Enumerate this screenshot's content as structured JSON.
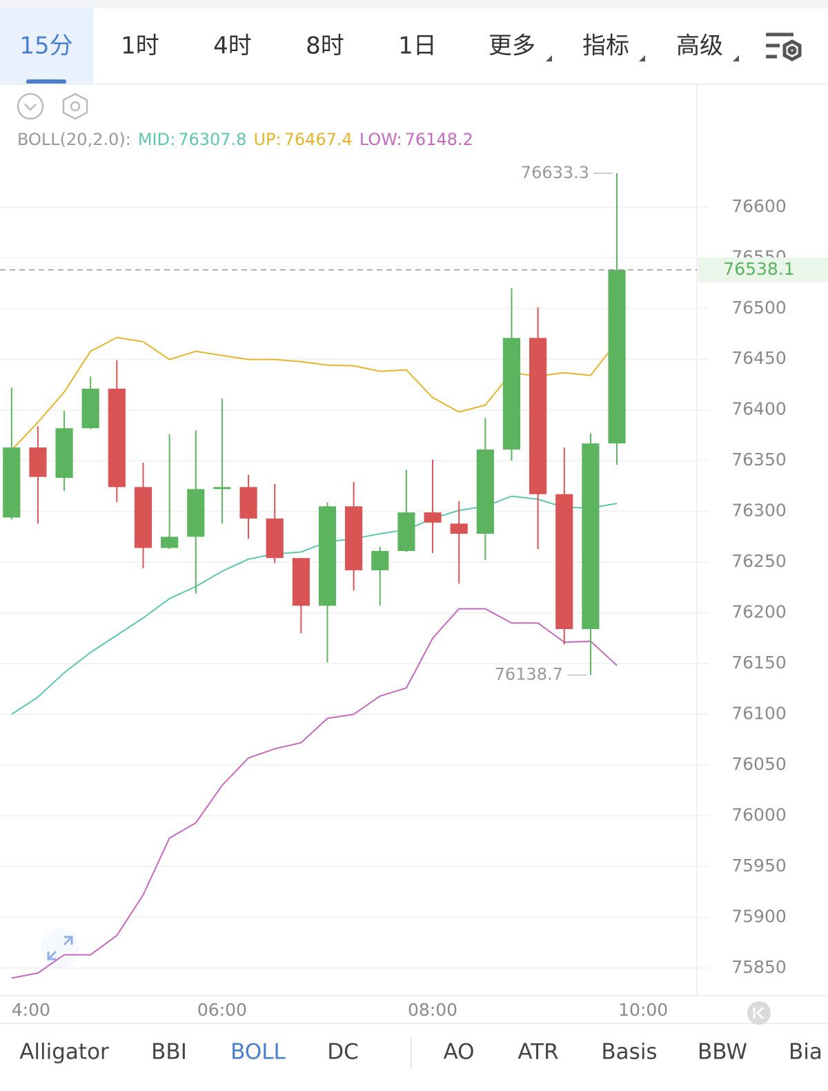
{
  "tabs": [
    "15分",
    "1时",
    "4时",
    "8时",
    "1日",
    "更多",
    "指标",
    "高级"
  ],
  "indicator_tabs": [
    "Alligator",
    "BBI",
    "BOLL",
    "DC",
    "AO",
    "ATR",
    "Basis",
    "BBW",
    "Bia"
  ],
  "chart_data": {
    "type": "candlestick",
    "indicator": "BOLL(20,2.0):",
    "up_color": "#5cb45f",
    "down_color": "#d95454",
    "x": [
      4,
      4.25,
      4.5,
      4.75,
      5,
      5.25,
      5.5,
      5.75,
      6,
      6.25,
      6.5,
      6.75,
      7,
      7.25,
      7.5,
      7.75,
      8,
      8.25,
      8.5,
      8.75,
      9,
      9.25,
      9.5,
      9.75
    ],
    "open": [
      76294,
      76363,
      76333,
      76382,
      76421,
      76324,
      76264,
      76275,
      76322,
      76324,
      76293,
      76254,
      76207,
      76305,
      76242,
      76261,
      76299,
      76288,
      76278,
      76361,
      76471,
      76317,
      76184,
      76367
    ],
    "high": [
      76422,
      76384,
      76399,
      76433,
      76449,
      76348,
      76376,
      76380,
      76411,
      76336,
      76327,
      76254,
      76309,
      76329,
      76265,
      76341,
      76351,
      76310,
      76392,
      76520,
      76501,
      76363,
      76377,
      76633.3
    ],
    "low": [
      76292,
      76288,
      76320,
      76381,
      76309,
      76244,
      76263,
      76219,
      76288,
      76273,
      76249,
      76180,
      76151,
      76222,
      76207,
      76260,
      76259,
      76229,
      76252,
      76350,
      76263,
      76169,
      76138.7,
      76346
    ],
    "close": [
      76363,
      76334,
      76382,
      76421,
      76324,
      76264,
      76275,
      76322,
      76324,
      76293,
      76254,
      76207,
      76305,
      76242,
      76261,
      76299,
      76289,
      76278,
      76361,
      76471,
      76317,
      76184,
      76367,
      76538.1
    ],
    "series": [
      {
        "name": "MID:",
        "color": "#5ec5ae",
        "values": [
          76100,
          76117,
          76141,
          76161,
          76178,
          76195,
          76214,
          76226,
          76241,
          76253,
          76258,
          76260,
          76270,
          76273,
          76278,
          76282,
          76293,
          76301,
          76305,
          76315,
          76312,
          76304,
          76303.4,
          76307.8
        ]
      },
      {
        "name": "UP:",
        "color": "#e3b52f",
        "values": [
          76360.5,
          76387.8,
          76417.7,
          76457.8,
          76471.4,
          76467.3,
          76449.7,
          76457.8,
          76453.7,
          76449.7,
          76449.7,
          76447.6,
          76444.2,
          76443.5,
          76438.1,
          76439.5,
          76412.2,
          76398,
          76404.8,
          76436.7,
          76433.3,
          76436.7,
          76434,
          76467.4
        ]
      },
      {
        "name": "LOW:",
        "color": "#c46bbd",
        "values": [
          75840,
          75845,
          75863,
          75863,
          75882,
          75922,
          75978,
          75993,
          76030,
          76057,
          76066,
          76072,
          76096,
          76100,
          76118,
          76126,
          76175,
          76204,
          76204,
          76190,
          76190,
          76171,
          76172,
          76148.2
        ]
      }
    ],
    "xlim": [
      3.89,
      10.51
    ],
    "xticks": [
      {
        "value": 4,
        "label": "4:00"
      },
      {
        "value": 6,
        "label": "06:00"
      },
      {
        "value": 8,
        "label": "08:00"
      },
      {
        "value": 10,
        "label": "10:00"
      }
    ],
    "ylim": [
      75824,
      76719
    ],
    "yticks": [
      75850,
      75900,
      75950,
      76000,
      76050,
      76100,
      76150,
      76200,
      76250,
      76300,
      76350,
      76400,
      76450,
      76500,
      76550,
      76600
    ],
    "grid": true
  }
}
